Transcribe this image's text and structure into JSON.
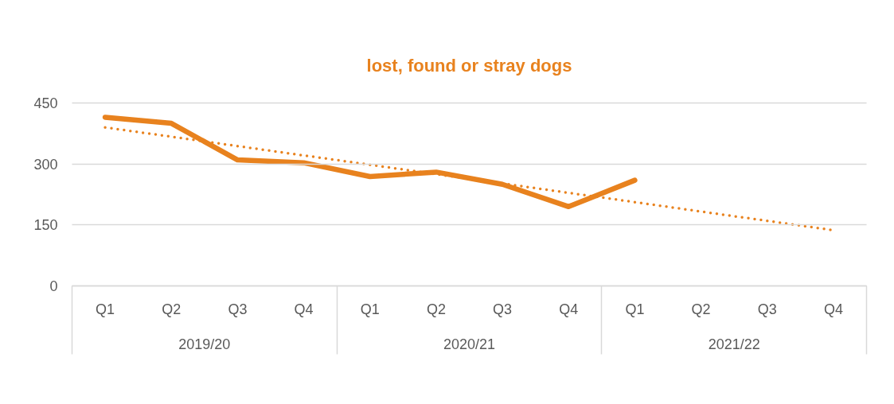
{
  "chart_data": {
    "type": "line",
    "title": "lost, found or stray dogs",
    "categories": [
      "Q1",
      "Q2",
      "Q3",
      "Q4",
      "Q1",
      "Q2",
      "Q3",
      "Q4",
      "Q1",
      "Q2",
      "Q3",
      "Q4"
    ],
    "annotations": [
      "2019/20",
      "2020/21",
      "2021/22"
    ],
    "series": [
      {
        "color": "#e8821e",
        "values": [
          415,
          400,
          310,
          303,
          269,
          280,
          250,
          195,
          260,
          null,
          null,
          null
        ]
      },
      {
        "type": "line",
        "color": "#e8821e",
        "line_style": "dotted",
        "values": [
          390,
          367,
          344,
          321,
          298,
          275,
          252,
          229,
          206,
          183,
          160,
          137
        ]
      }
    ],
    "ylim": [
      0,
      450
    ],
    "yticks": [
      0,
      150,
      300,
      450
    ],
    "grid": "y"
  }
}
